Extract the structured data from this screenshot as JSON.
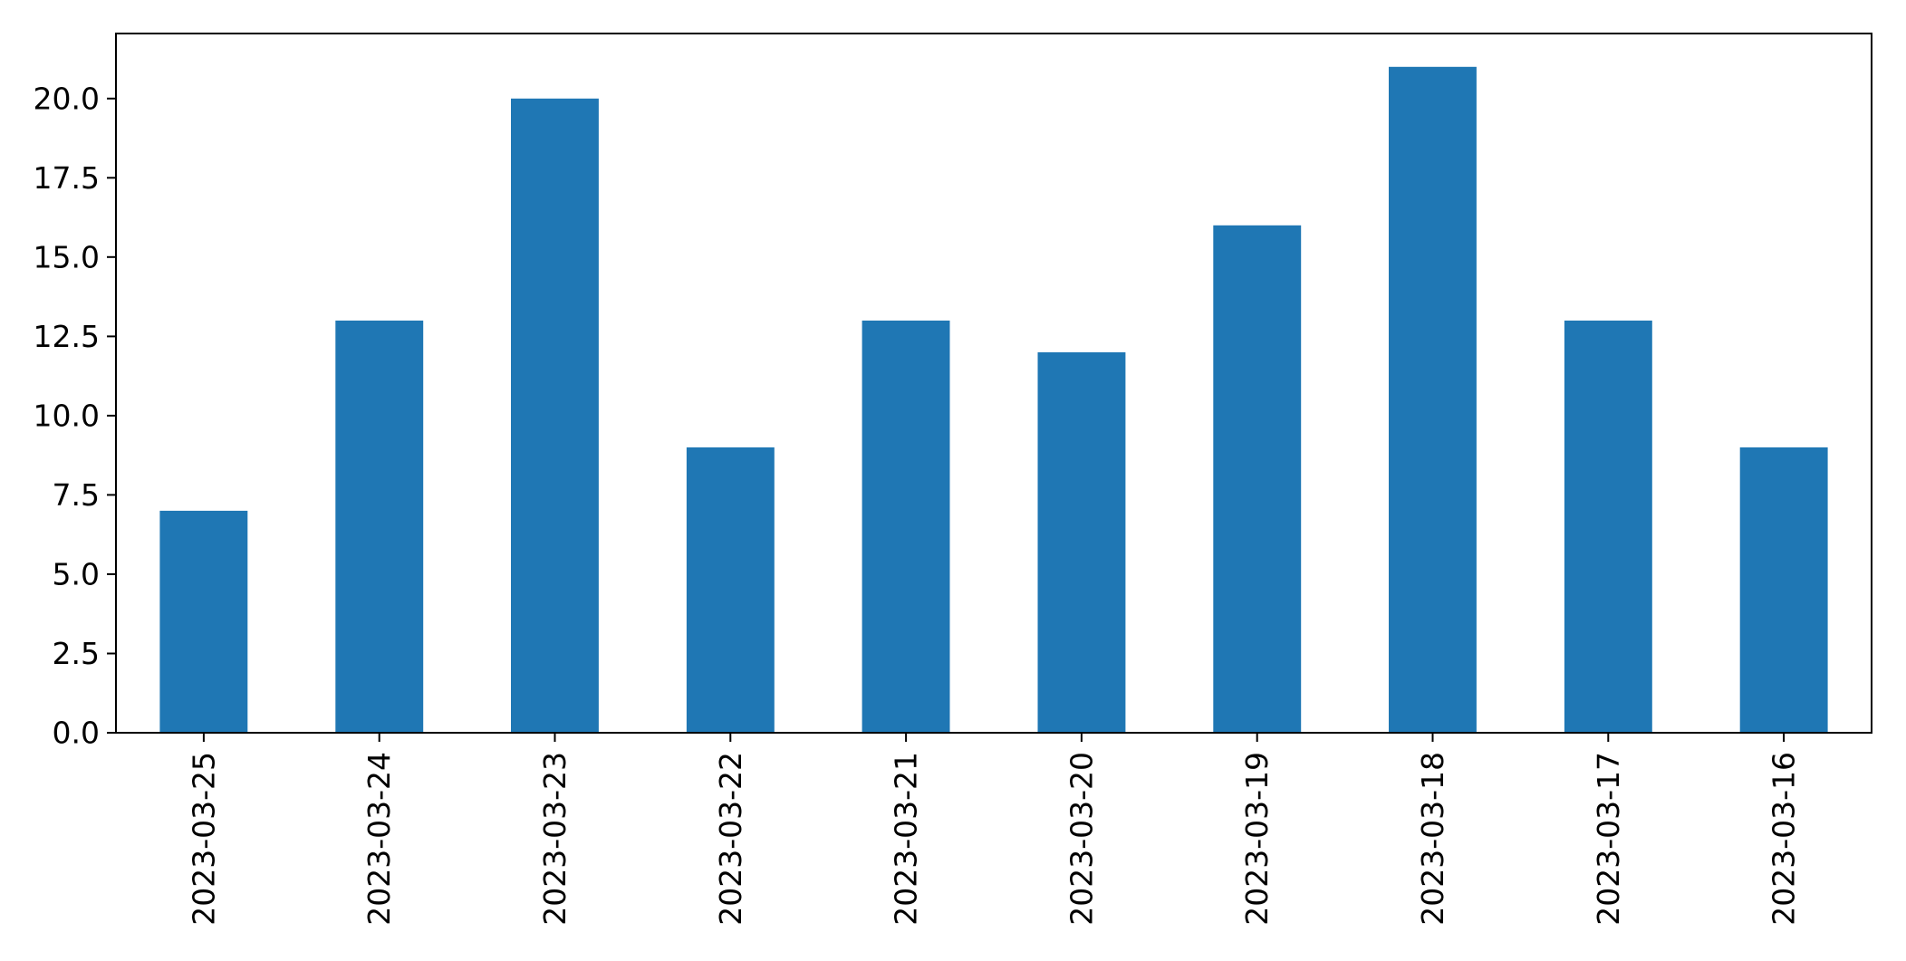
{
  "chart_data": {
    "type": "bar",
    "categories": [
      "2023-03-25",
      "2023-03-24",
      "2023-03-23",
      "2023-03-22",
      "2023-03-21",
      "2023-03-20",
      "2023-03-19",
      "2023-03-18",
      "2023-03-17",
      "2023-03-16"
    ],
    "values": [
      7,
      13,
      20,
      9,
      13,
      12,
      16,
      21,
      13,
      9
    ],
    "title": "",
    "xlabel": "",
    "ylabel": "",
    "ylim": [
      0,
      22.05
    ],
    "yticks": [
      0.0,
      2.5,
      5.0,
      7.5,
      10.0,
      12.5,
      15.0,
      17.5,
      20.0
    ],
    "ytick_labels": [
      "0.0",
      "2.5",
      "5.0",
      "7.5",
      "10.0",
      "12.5",
      "15.0",
      "17.5",
      "20.0"
    ],
    "x_tick_rotation": 90,
    "bar_color": "#1f77b4",
    "axis_color": "#000000",
    "background_color": "#ffffff",
    "grid": false,
    "legend": null
  }
}
